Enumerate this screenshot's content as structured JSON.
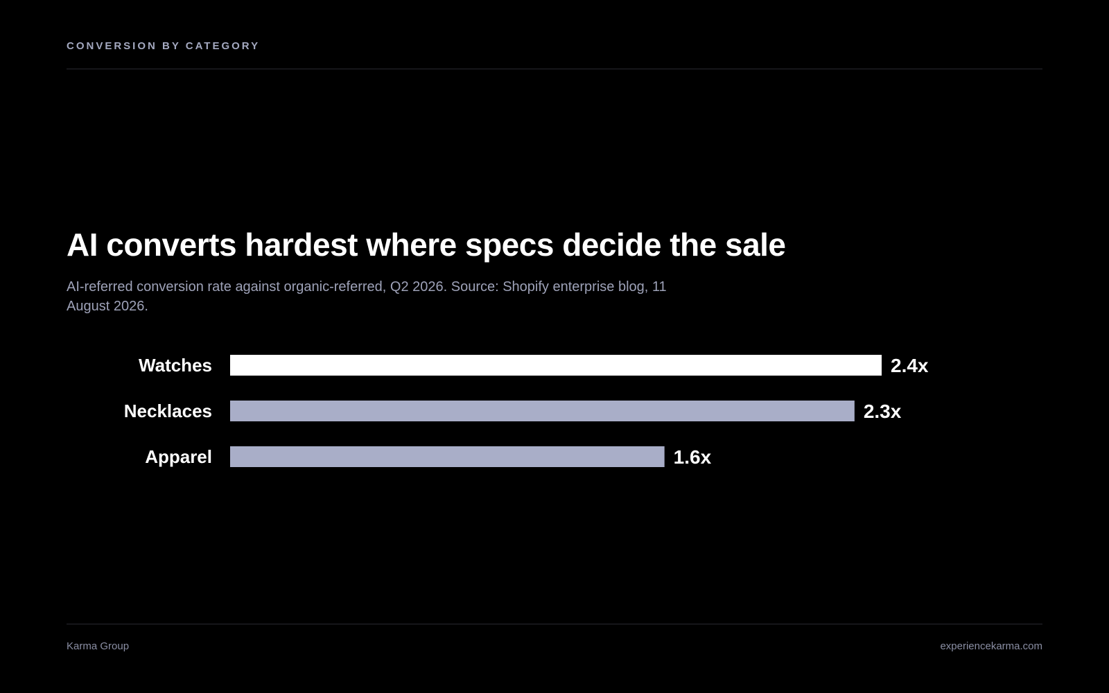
{
  "header": {
    "eyebrow": "CONVERSION BY CATEGORY"
  },
  "title": "AI converts hardest where specs decide the sale",
  "subtitle": "AI-referred conversion rate against organic-referred, Q2 2026. Source: Shopify enterprise blog, 11 August 2026.",
  "chart_data": {
    "type": "bar",
    "orientation": "horizontal",
    "categories": [
      "Watches",
      "Necklaces",
      "Apparel"
    ],
    "values": [
      2.4,
      2.3,
      1.6
    ],
    "value_labels": [
      "2.4x",
      "2.3x",
      "1.6x"
    ],
    "xlim": [
      0,
      2.4
    ],
    "grid": false,
    "colors": {
      "highlight": "#ffffff",
      "default": "#a9aec8",
      "label": "#ffffff"
    }
  },
  "footer": {
    "left": "Karma Group",
    "right": "experiencekarma.com"
  }
}
